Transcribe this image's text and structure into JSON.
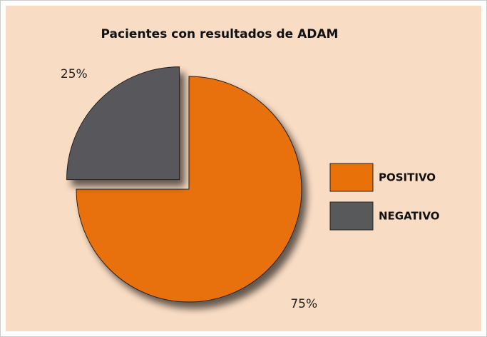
{
  "chart_data": {
    "type": "pie",
    "title": "Pacientes con resultados de ADAM",
    "categories": [
      "POSITIVO",
      "NEGATIVO"
    ],
    "values": [
      75,
      25
    ],
    "value_labels": [
      "75%",
      "25%"
    ],
    "colors": [
      "#e8710a",
      "#58595b"
    ],
    "legend": "right"
  }
}
